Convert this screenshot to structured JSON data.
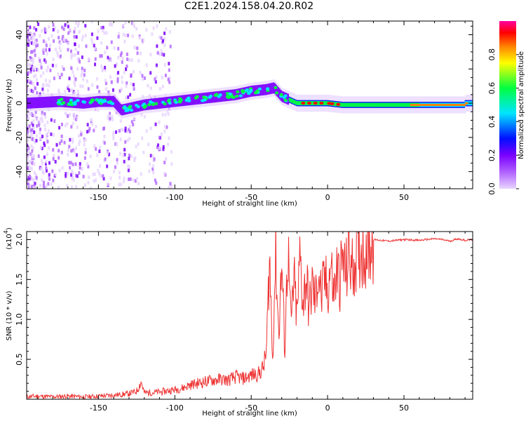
{
  "title": "C2E1.2024.158.04.20.R02",
  "chart_data": [
    {
      "type": "heatmap",
      "xlabel": "Height of straight line (km)",
      "ylabel": "Frequency (Hz)",
      "xlim": [
        -197,
        95
      ],
      "ylim": [
        -50,
        48
      ],
      "xticks": [
        -150,
        -100,
        -50,
        0,
        50
      ],
      "xtick_labels": [
        "-150",
        "-100",
        "-50",
        "0",
        "50"
      ],
      "yticks": [
        -40,
        -20,
        0,
        20,
        40
      ],
      "ytick_labels": [
        "-40",
        "-20",
        "0",
        "20",
        "40"
      ],
      "colorbar": {
        "label": "Normalized spectral amplitude",
        "range": [
          0,
          1
        ],
        "ticks": [
          0.0,
          0.2,
          0.4,
          0.6,
          0.8
        ],
        "tick_labels": [
          "0.0",
          "0.2",
          "0.4",
          "0.6",
          "0.8"
        ],
        "colors": [
          "#e8d5ff",
          "#7a00ff",
          "#0010ff",
          "#00e5ff",
          "#00ff40",
          "#ffff00",
          "#ff8000",
          "#ff0000",
          "#ff00a0"
        ]
      },
      "ridge": {
        "x": [
          -197,
          -175,
          -160,
          -150,
          -140,
          -135,
          -130,
          -120,
          -100,
          -90,
          -80,
          -70,
          -60,
          -50,
          -40,
          -35,
          -30,
          -25,
          -20,
          -10,
          0,
          10,
          30,
          60,
          90
        ],
        "y": [
          0,
          1,
          0,
          1,
          1,
          -4,
          -3,
          -1,
          1,
          2,
          3,
          4,
          5,
          7,
          8,
          9,
          4,
          2,
          0,
          0,
          0,
          -1,
          -1,
          -1,
          -1
        ]
      }
    },
    {
      "type": "line",
      "xlabel": "Height of straight line (km)",
      "ylabel": "SNR (10 * v/v)",
      "y_multiplier": "(x10",
      "y_multiplier_exp": "4",
      "y_multiplier_close": ")",
      "xlim": [
        -197,
        95
      ],
      "ylim": [
        0,
        2.1
      ],
      "xticks": [
        -150,
        -100,
        -50,
        0,
        50
      ],
      "xtick_labels": [
        "-150",
        "-100",
        "-50",
        "0",
        "50"
      ],
      "yticks": [
        0.5,
        1.0,
        1.5,
        2.0
      ],
      "ytick_labels": [
        "0.5",
        "1.0",
        "1.5",
        "2.0"
      ],
      "line_color": "#ee3333",
      "series": [
        {
          "x": [
            -197,
            -190,
            -180,
            -170,
            -160,
            -150,
            -140,
            -130,
            -125,
            -122,
            -120,
            -110,
            -100,
            -95,
            -90,
            -85,
            -80,
            -75,
            -70,
            -65,
            -60,
            -55,
            -50,
            -45,
            -42,
            -40,
            -38,
            -36,
            -34,
            -32,
            -30,
            -28,
            -26,
            -24,
            -22,
            -20,
            -18,
            -16,
            -14,
            -12,
            -10,
            -8,
            -6,
            -4,
            -2,
            0,
            2,
            4,
            6,
            8,
            10,
            12,
            14,
            16,
            18,
            20,
            22,
            24,
            26,
            28,
            30,
            35,
            40,
            50,
            60,
            70,
            75,
            80,
            85,
            90,
            95
          ],
          "y": [
            0.03,
            0.04,
            0.03,
            0.04,
            0.03,
            0.04,
            0.05,
            0.07,
            0.1,
            0.22,
            0.08,
            0.09,
            0.12,
            0.14,
            0.18,
            0.2,
            0.22,
            0.24,
            0.25,
            0.24,
            0.28,
            0.26,
            0.3,
            0.32,
            0.4,
            0.6,
            1.8,
            0.5,
            1.85,
            0.8,
            1.7,
            0.6,
            1.95,
            0.9,
            1.5,
            1.0,
            1.8,
            1.2,
            1.55,
            1.1,
            1.45,
            1.2,
            1.65,
            1.25,
            1.5,
            1.35,
            1.7,
            1.3,
            1.6,
            1.5,
            1.75,
            1.55,
            1.85,
            1.6,
            1.8,
            1.8,
            1.9,
            1.85,
            1.95,
            1.93,
            2.0,
            1.99,
            1.98,
            2.0,
            1.99,
            2.01,
            2.0,
            1.98,
            2.01,
            1.99,
            2.0
          ]
        }
      ]
    }
  ]
}
